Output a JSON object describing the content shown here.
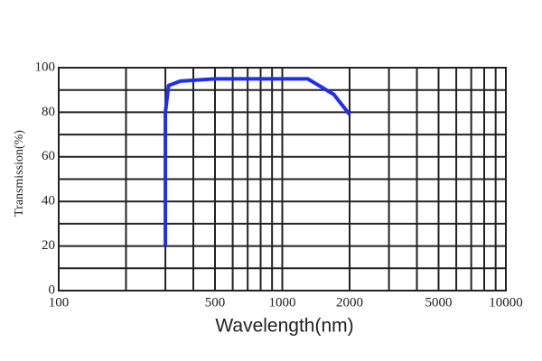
{
  "chart_data": {
    "type": "line",
    "x_label": "Wavelength(nm)",
    "y_label": "Transmission(%)",
    "x": [
      300,
      300,
      310,
      350,
      500,
      1000,
      1300,
      1700,
      2000
    ],
    "values": [
      20,
      80,
      92,
      94,
      95,
      95,
      95,
      88,
      79
    ],
    "color": "#1f2ff0",
    "xscale": "log",
    "xlim": [
      100,
      10000
    ],
    "xticks": [
      100,
      500,
      1000,
      2000,
      5000,
      10000
    ],
    "x_minor_grid": [
      200,
      300,
      400,
      600,
      700,
      800,
      900,
      3000,
      4000,
      6000,
      7000,
      8000,
      9000
    ],
    "ylim": [
      0,
      100
    ],
    "yticks": [
      0,
      20,
      40,
      60,
      80,
      100
    ],
    "y_minor_grid": [
      10,
      30,
      50,
      70,
      90
    ],
    "grid": true
  }
}
